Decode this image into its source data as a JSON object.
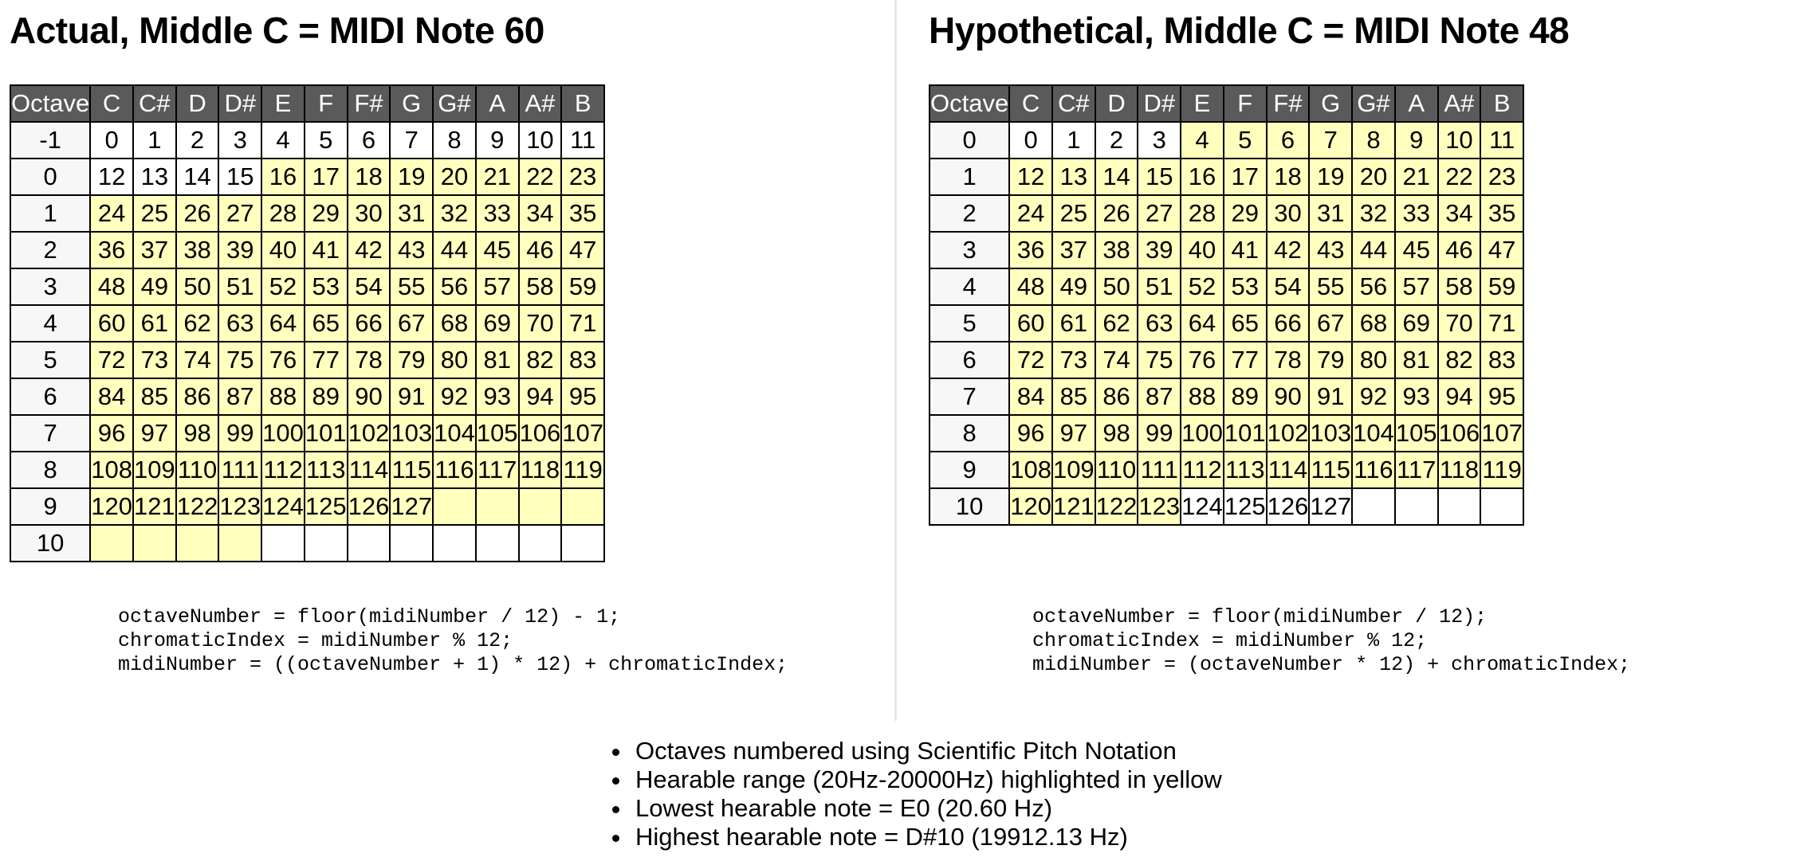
{
  "left": {
    "title": "Actual, Middle C = MIDI Note 60",
    "code": [
      "octaveNumber = floor(midiNumber / 12) - 1;",
      "chromaticIndex = midiNumber % 12;",
      "midiNumber = ((octaveNumber + 1) * 12) + chromaticIndex;"
    ],
    "table": {
      "header": [
        "Octave",
        "C",
        "C#",
        "D",
        "D#",
        "E",
        "F",
        "F#",
        "G",
        "G#",
        "A",
        "A#",
        "B"
      ],
      "rows": [
        {
          "octave": "-1",
          "cells": [
            "0",
            "1",
            "2",
            "3",
            "4",
            "5",
            "6",
            "7",
            "8",
            "9",
            "10",
            "11"
          ],
          "hl": [
            0,
            0,
            0,
            0,
            0,
            0,
            0,
            0,
            0,
            0,
            0,
            0
          ]
        },
        {
          "octave": "0",
          "cells": [
            "12",
            "13",
            "14",
            "15",
            "16",
            "17",
            "18",
            "19",
            "20",
            "21",
            "22",
            "23"
          ],
          "hl": [
            0,
            0,
            0,
            0,
            1,
            1,
            1,
            1,
            1,
            1,
            1,
            1
          ]
        },
        {
          "octave": "1",
          "cells": [
            "24",
            "25",
            "26",
            "27",
            "28",
            "29",
            "30",
            "31",
            "32",
            "33",
            "34",
            "35"
          ],
          "hl": [
            1,
            1,
            1,
            1,
            1,
            1,
            1,
            1,
            1,
            1,
            1,
            1
          ]
        },
        {
          "octave": "2",
          "cells": [
            "36",
            "37",
            "38",
            "39",
            "40",
            "41",
            "42",
            "43",
            "44",
            "45",
            "46",
            "47"
          ],
          "hl": [
            1,
            1,
            1,
            1,
            1,
            1,
            1,
            1,
            1,
            1,
            1,
            1
          ]
        },
        {
          "octave": "3",
          "cells": [
            "48",
            "49",
            "50",
            "51",
            "52",
            "53",
            "54",
            "55",
            "56",
            "57",
            "58",
            "59"
          ],
          "hl": [
            1,
            1,
            1,
            1,
            1,
            1,
            1,
            1,
            1,
            1,
            1,
            1
          ]
        },
        {
          "octave": "4",
          "cells": [
            "60",
            "61",
            "62",
            "63",
            "64",
            "65",
            "66",
            "67",
            "68",
            "69",
            "70",
            "71"
          ],
          "hl": [
            1,
            1,
            1,
            1,
            1,
            1,
            1,
            1,
            1,
            1,
            1,
            1
          ]
        },
        {
          "octave": "5",
          "cells": [
            "72",
            "73",
            "74",
            "75",
            "76",
            "77",
            "78",
            "79",
            "80",
            "81",
            "82",
            "83"
          ],
          "hl": [
            1,
            1,
            1,
            1,
            1,
            1,
            1,
            1,
            1,
            1,
            1,
            1
          ]
        },
        {
          "octave": "6",
          "cells": [
            "84",
            "85",
            "86",
            "87",
            "88",
            "89",
            "90",
            "91",
            "92",
            "93",
            "94",
            "95"
          ],
          "hl": [
            1,
            1,
            1,
            1,
            1,
            1,
            1,
            1,
            1,
            1,
            1,
            1
          ]
        },
        {
          "octave": "7",
          "cells": [
            "96",
            "97",
            "98",
            "99",
            "100",
            "101",
            "102",
            "103",
            "104",
            "105",
            "106",
            "107"
          ],
          "hl": [
            1,
            1,
            1,
            1,
            1,
            1,
            1,
            1,
            1,
            1,
            1,
            1
          ]
        },
        {
          "octave": "8",
          "cells": [
            "108",
            "109",
            "110",
            "111",
            "112",
            "113",
            "114",
            "115",
            "116",
            "117",
            "118",
            "119"
          ],
          "hl": [
            1,
            1,
            1,
            1,
            1,
            1,
            1,
            1,
            1,
            1,
            1,
            1
          ]
        },
        {
          "octave": "9",
          "cells": [
            "120",
            "121",
            "122",
            "123",
            "124",
            "125",
            "126",
            "127",
            "",
            "",
            "",
            ""
          ],
          "hl": [
            1,
            1,
            1,
            1,
            1,
            1,
            1,
            1,
            1,
            1,
            1,
            1
          ]
        },
        {
          "octave": "10",
          "cells": [
            "",
            "",
            "",
            "",
            "",
            "",
            "",
            "",
            "",
            "",
            "",
            ""
          ],
          "hl": [
            1,
            1,
            1,
            1,
            0,
            0,
            0,
            0,
            0,
            0,
            0,
            0
          ]
        }
      ]
    }
  },
  "right": {
    "title": "Hypothetical, Middle C = MIDI Note 48",
    "code": [
      "octaveNumber = floor(midiNumber / 12);",
      "chromaticIndex = midiNumber % 12;",
      "midiNumber = (octaveNumber * 12) + chromaticIndex;"
    ],
    "table": {
      "header": [
        "Octave",
        "C",
        "C#",
        "D",
        "D#",
        "E",
        "F",
        "F#",
        "G",
        "G#",
        "A",
        "A#",
        "B"
      ],
      "rows": [
        {
          "octave": "0",
          "cells": [
            "0",
            "1",
            "2",
            "3",
            "4",
            "5",
            "6",
            "7",
            "8",
            "9",
            "10",
            "11"
          ],
          "hl": [
            0,
            0,
            0,
            0,
            1,
            1,
            1,
            1,
            1,
            1,
            1,
            1
          ]
        },
        {
          "octave": "1",
          "cells": [
            "12",
            "13",
            "14",
            "15",
            "16",
            "17",
            "18",
            "19",
            "20",
            "21",
            "22",
            "23"
          ],
          "hl": [
            1,
            1,
            1,
            1,
            1,
            1,
            1,
            1,
            1,
            1,
            1,
            1
          ]
        },
        {
          "octave": "2",
          "cells": [
            "24",
            "25",
            "26",
            "27",
            "28",
            "29",
            "30",
            "31",
            "32",
            "33",
            "34",
            "35"
          ],
          "hl": [
            1,
            1,
            1,
            1,
            1,
            1,
            1,
            1,
            1,
            1,
            1,
            1
          ]
        },
        {
          "octave": "3",
          "cells": [
            "36",
            "37",
            "38",
            "39",
            "40",
            "41",
            "42",
            "43",
            "44",
            "45",
            "46",
            "47"
          ],
          "hl": [
            1,
            1,
            1,
            1,
            1,
            1,
            1,
            1,
            1,
            1,
            1,
            1
          ]
        },
        {
          "octave": "4",
          "cells": [
            "48",
            "49",
            "50",
            "51",
            "52",
            "53",
            "54",
            "55",
            "56",
            "57",
            "58",
            "59"
          ],
          "hl": [
            1,
            1,
            1,
            1,
            1,
            1,
            1,
            1,
            1,
            1,
            1,
            1
          ]
        },
        {
          "octave": "5",
          "cells": [
            "60",
            "61",
            "62",
            "63",
            "64",
            "65",
            "66",
            "67",
            "68",
            "69",
            "70",
            "71"
          ],
          "hl": [
            1,
            1,
            1,
            1,
            1,
            1,
            1,
            1,
            1,
            1,
            1,
            1
          ]
        },
        {
          "octave": "6",
          "cells": [
            "72",
            "73",
            "74",
            "75",
            "76",
            "77",
            "78",
            "79",
            "80",
            "81",
            "82",
            "83"
          ],
          "hl": [
            1,
            1,
            1,
            1,
            1,
            1,
            1,
            1,
            1,
            1,
            1,
            1
          ]
        },
        {
          "octave": "7",
          "cells": [
            "84",
            "85",
            "86",
            "87",
            "88",
            "89",
            "90",
            "91",
            "92",
            "93",
            "94",
            "95"
          ],
          "hl": [
            1,
            1,
            1,
            1,
            1,
            1,
            1,
            1,
            1,
            1,
            1,
            1
          ]
        },
        {
          "octave": "8",
          "cells": [
            "96",
            "97",
            "98",
            "99",
            "100",
            "101",
            "102",
            "103",
            "104",
            "105",
            "106",
            "107"
          ],
          "hl": [
            1,
            1,
            1,
            1,
            1,
            1,
            1,
            1,
            1,
            1,
            1,
            1
          ]
        },
        {
          "octave": "9",
          "cells": [
            "108",
            "109",
            "110",
            "111",
            "112",
            "113",
            "114",
            "115",
            "116",
            "117",
            "118",
            "119"
          ],
          "hl": [
            1,
            1,
            1,
            1,
            1,
            1,
            1,
            1,
            1,
            1,
            1,
            1
          ]
        },
        {
          "octave": "10",
          "cells": [
            "120",
            "121",
            "122",
            "123",
            "124",
            "125",
            "126",
            "127",
            "",
            "",
            "",
            ""
          ],
          "hl": [
            1,
            1,
            1,
            1,
            0,
            0,
            0,
            0,
            0,
            0,
            0,
            0
          ]
        }
      ]
    }
  },
  "notes": [
    "Octaves numbered using Scientific Pitch Notation",
    "Hearable range (20Hz-20000Hz) highlighted in yellow",
    "Lowest hearable note = E0 (20.60 Hz)",
    "Highest hearable note = D#10 (19912.13 Hz)"
  ],
  "colors": {
    "header_bg": "#5a5a5a",
    "header_text": "#ffffff",
    "octave_cell_bg": "#f7f7f7",
    "highlight": "#ffffbe",
    "border": "#000000"
  }
}
